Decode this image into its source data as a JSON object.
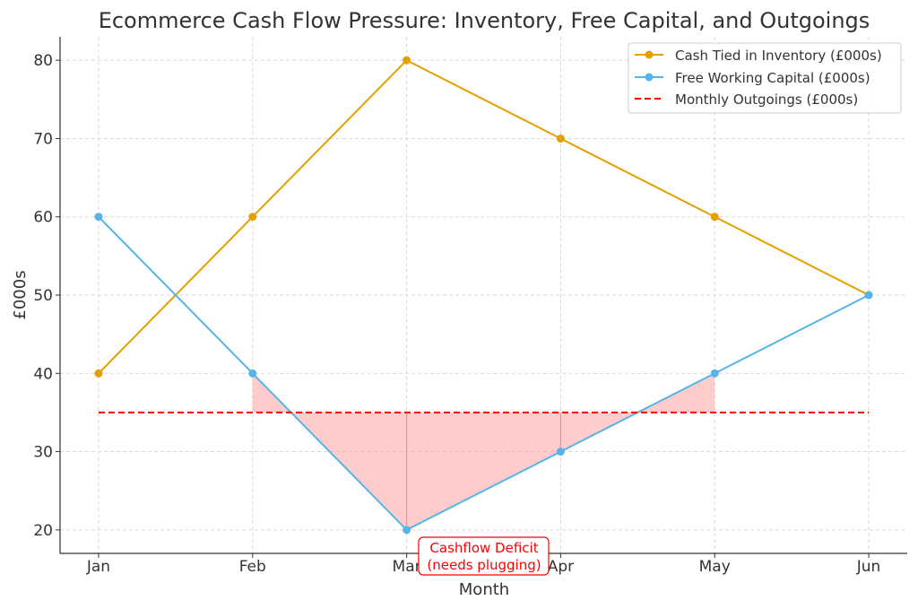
{
  "chart_data": {
    "type": "line",
    "title": "Ecommerce Cash Flow Pressure: Inventory, Free Capital, and Outgoings",
    "xlabel": "Month",
    "ylabel": "£000s",
    "categories": [
      "Jan",
      "Feb",
      "Mar",
      "Apr",
      "May",
      "Jun"
    ],
    "ylim": [
      17,
      83
    ],
    "yticks": [
      20,
      30,
      40,
      50,
      60,
      70,
      80
    ],
    "grid": true,
    "legend_position": "top-right",
    "series": [
      {
        "name": "Cash Tied in Inventory (£000s)",
        "values": [
          40,
          60,
          80,
          70,
          60,
          50
        ],
        "color": "#E69F00",
        "style": "solid-marker"
      },
      {
        "name": "Free Working Capital (£000s)",
        "values": [
          60,
          40,
          20,
          30,
          40,
          50
        ],
        "color": "#56B4E9",
        "style": "solid-marker"
      },
      {
        "name": "Monthly Outgoings (£000s)",
        "values": [
          35,
          35,
          35,
          35,
          35,
          35
        ],
        "color": "#FF0000",
        "style": "dashed"
      }
    ],
    "shaded_region": {
      "between": [
        "Free Working Capital (£000s)",
        "Monthly Outgoings (£000s)"
      ],
      "from": "Feb",
      "to": "May",
      "color": "#FF9999"
    },
    "annotation": {
      "line1": "Cashflow Deficit",
      "line2": "(needs plugging)",
      "color": "#FF0000",
      "anchor": "Mar"
    }
  }
}
